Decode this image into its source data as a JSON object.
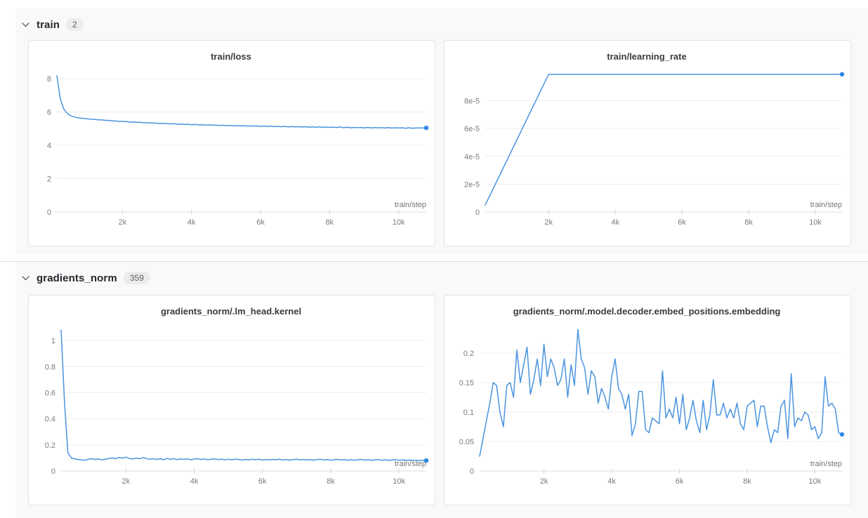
{
  "colors": {
    "line": "#4a94e0",
    "dot": "#2f88e6",
    "section_bg": "#f9f9f9",
    "grid": "#ededed",
    "axis": "#dcdcdc",
    "tick_mark": "#d9d9d9"
  },
  "sections": [
    {
      "label": "train",
      "badge": "2",
      "chart_indexes": [
        0,
        1
      ]
    },
    {
      "label": "gradients_norm",
      "badge": "359",
      "chart_indexes": [
        2,
        3
      ]
    }
  ],
  "chart_data": [
    {
      "type": "line",
      "title": "train/loss",
      "xlabel": "train/step",
      "xlim": [
        100,
        10800
      ],
      "ylim": [
        0,
        8.6
      ],
      "mleft": 40,
      "yticks": [
        0,
        2,
        4,
        6,
        8
      ],
      "ytick_labels": [
        "0",
        "2",
        "4",
        "6",
        "8"
      ],
      "xticks": [
        2000,
        4000,
        6000,
        8000,
        10000
      ],
      "xtick_labels": [
        "2k",
        "4k",
        "6k",
        "8k",
        "10k"
      ],
      "x_start": 100,
      "x_step": 100,
      "values": [
        8.18,
        6.79,
        6.18,
        5.92,
        5.78,
        5.71,
        5.66,
        5.64,
        5.61,
        5.6,
        5.57,
        5.56,
        5.53,
        5.53,
        5.5,
        5.5,
        5.47,
        5.47,
        5.44,
        5.44,
        5.43,
        5.4,
        5.41,
        5.38,
        5.39,
        5.36,
        5.37,
        5.34,
        5.35,
        5.32,
        5.33,
        5.31,
        5.31,
        5.29,
        5.3,
        5.27,
        5.28,
        5.26,
        5.27,
        5.24,
        5.26,
        5.23,
        5.24,
        5.22,
        5.23,
        5.21,
        5.22,
        5.2,
        5.21,
        5.19,
        5.2,
        5.18,
        5.19,
        5.17,
        5.18,
        5.16,
        5.17,
        5.15,
        5.17,
        5.14,
        5.16,
        5.13,
        5.15,
        5.13,
        5.14,
        5.12,
        5.14,
        5.11,
        5.13,
        5.11,
        5.12,
        5.1,
        5.12,
        5.09,
        5.11,
        5.09,
        5.11,
        5.08,
        5.1,
        5.08,
        5.1,
        5.07,
        5.11,
        5.06,
        5.09,
        5.06,
        5.08,
        5.06,
        5.08,
        5.05,
        5.08,
        5.05,
        5.07,
        5.05,
        5.07,
        5.04,
        5.07,
        5.04,
        5.06,
        5.04,
        5.06,
        5.03,
        5.06,
        5.03,
        5.05,
        5.04,
        5.05,
        5.05
      ],
      "end_dot": true
    },
    {
      "type": "line",
      "title": "train/learning_rate",
      "xlabel": "train/step",
      "xlim": [
        100,
        10800
      ],
      "ylim": [
        0,
        0.000103
      ],
      "mleft": 58,
      "yticks": [
        0,
        2e-05,
        4e-05,
        6e-05,
        8e-05
      ],
      "ytick_labels": [
        "0",
        "2e-5",
        "4e-5",
        "6e-5",
        "8e-5"
      ],
      "xticks": [
        2000,
        4000,
        6000,
        8000,
        10000
      ],
      "xtick_labels": [
        "2k",
        "4k",
        "6k",
        "8k",
        "10k"
      ],
      "points": [
        [
          100,
          5e-06
        ],
        [
          2000,
          9.9e-05
        ],
        [
          10800,
          9.9e-05
        ]
      ],
      "end_dot": true
    },
    {
      "type": "line",
      "title": "gradients_norm/.lm_head.kernel",
      "xlabel": "train/step",
      "xlim": [
        100,
        10800
      ],
      "ylim": [
        0,
        1.13
      ],
      "mleft": 46,
      "yticks": [
        0,
        0.2,
        0.4,
        0.6,
        0.8,
        1
      ],
      "ytick_labels": [
        "0",
        "0.2",
        "0.4",
        "0.6",
        "0.8",
        "1"
      ],
      "xticks": [
        2000,
        4000,
        6000,
        8000,
        10000
      ],
      "xtick_labels": [
        "2k",
        "4k",
        "6k",
        "8k",
        "10k"
      ],
      "x_start": 100,
      "x_step": 100,
      "values": [
        1.08,
        0.52,
        0.14,
        0.1,
        0.092,
        0.089,
        0.085,
        0.083,
        0.09,
        0.094,
        0.088,
        0.092,
        0.085,
        0.091,
        0.096,
        0.1,
        0.094,
        0.104,
        0.098,
        0.106,
        0.096,
        0.092,
        0.098,
        0.094,
        0.103,
        0.095,
        0.09,
        0.094,
        0.088,
        0.094,
        0.086,
        0.096,
        0.089,
        0.094,
        0.087,
        0.092,
        0.089,
        0.093,
        0.086,
        0.091,
        0.094,
        0.088,
        0.092,
        0.086,
        0.09,
        0.093,
        0.087,
        0.091,
        0.085,
        0.09,
        0.086,
        0.091,
        0.088,
        0.084,
        0.089,
        0.085,
        0.09,
        0.086,
        0.09,
        0.084,
        0.088,
        0.085,
        0.089,
        0.086,
        0.09,
        0.084,
        0.088,
        0.083,
        0.087,
        0.09,
        0.085,
        0.088,
        0.084,
        0.087,
        0.083,
        0.087,
        0.09,
        0.084,
        0.088,
        0.083,
        0.086,
        0.089,
        0.084,
        0.087,
        0.083,
        0.086,
        0.082,
        0.086,
        0.089,
        0.083,
        0.086,
        0.082,
        0.085,
        0.088,
        0.082,
        0.086,
        0.081,
        0.084,
        0.087,
        0.082,
        0.085,
        0.081,
        0.084,
        0.08,
        0.083,
        0.08,
        0.082,
        0.08
      ],
      "end_dot": true
    },
    {
      "type": "line",
      "title": "gradients_norm/.model.decoder.embed_positions.embedding",
      "xlabel": "train/step",
      "xlim": [
        100,
        10800
      ],
      "ylim": [
        0,
        0.25
      ],
      "mleft": 50,
      "yticks": [
        0,
        0.05,
        0.1,
        0.15,
        0.2
      ],
      "ytick_labels": [
        "0",
        "0.05",
        "0.1",
        "0.15",
        "0.2"
      ],
      "xticks": [
        2000,
        4000,
        6000,
        8000,
        10000
      ],
      "xtick_labels": [
        "2k",
        "4k",
        "6k",
        "8k",
        "10k"
      ],
      "x_start": 100,
      "x_step": 100,
      "values": [
        0.025,
        0.055,
        0.085,
        0.115,
        0.15,
        0.145,
        0.1,
        0.075,
        0.145,
        0.15,
        0.125,
        0.205,
        0.15,
        0.18,
        0.21,
        0.13,
        0.155,
        0.19,
        0.145,
        0.215,
        0.16,
        0.19,
        0.175,
        0.145,
        0.155,
        0.19,
        0.125,
        0.18,
        0.145,
        0.24,
        0.19,
        0.175,
        0.13,
        0.17,
        0.16,
        0.115,
        0.14,
        0.125,
        0.105,
        0.16,
        0.19,
        0.14,
        0.13,
        0.105,
        0.13,
        0.06,
        0.08,
        0.135,
        0.135,
        0.07,
        0.065,
        0.09,
        0.085,
        0.08,
        0.17,
        0.09,
        0.105,
        0.09,
        0.125,
        0.08,
        0.13,
        0.07,
        0.09,
        0.12,
        0.085,
        0.065,
        0.12,
        0.07,
        0.095,
        0.155,
        0.095,
        0.095,
        0.115,
        0.09,
        0.105,
        0.09,
        0.115,
        0.08,
        0.07,
        0.11,
        0.115,
        0.12,
        0.075,
        0.11,
        0.11,
        0.075,
        0.048,
        0.07,
        0.065,
        0.11,
        0.12,
        0.055,
        0.165,
        0.075,
        0.09,
        0.085,
        0.1,
        0.095,
        0.07,
        0.075,
        0.055,
        0.065,
        0.16,
        0.11,
        0.115,
        0.105,
        0.065,
        0.062
      ],
      "end_dot": true
    }
  ]
}
